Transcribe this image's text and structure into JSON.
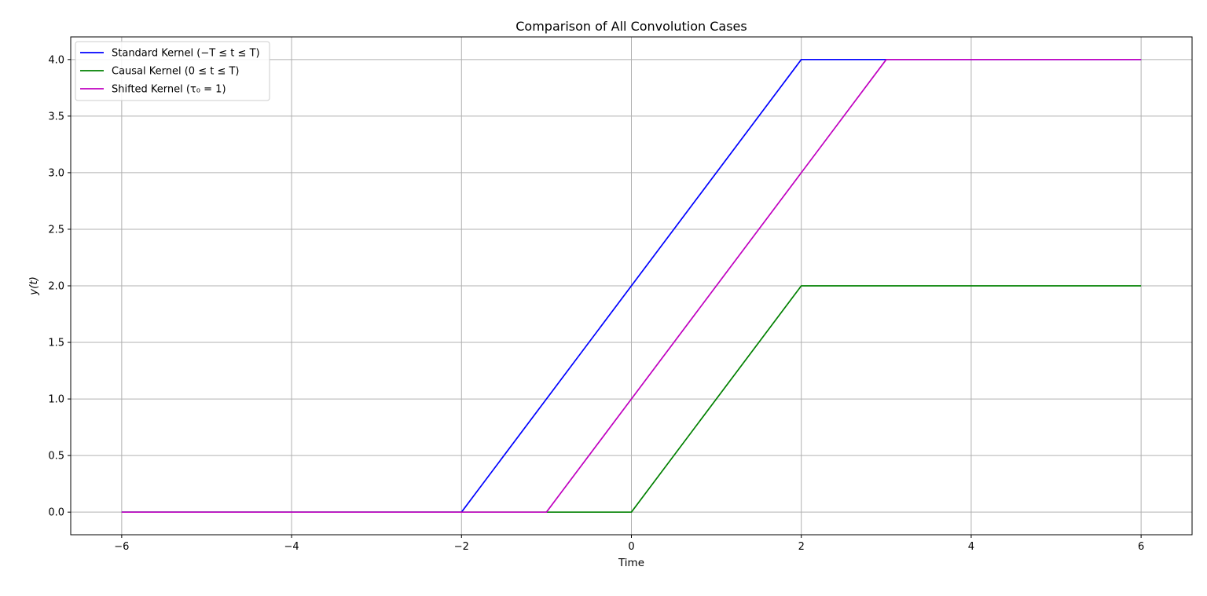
{
  "chart_data": {
    "type": "line",
    "title": "Comparison of All Convolution Cases",
    "xlabel": "Time",
    "ylabel": "y(t)",
    "xlim": [
      -6.6,
      6.6
    ],
    "ylim": [
      -0.2,
      4.2
    ],
    "xticks": [
      -6,
      -4,
      -2,
      0,
      2,
      4,
      6
    ],
    "xtick_labels": [
      "−6",
      "−4",
      "−2",
      "0",
      "2",
      "4",
      "6"
    ],
    "yticks": [
      0.0,
      0.5,
      1.0,
      1.5,
      2.0,
      2.5,
      3.0,
      3.5,
      4.0
    ],
    "ytick_labels": [
      "0.0",
      "0.5",
      "1.0",
      "1.5",
      "2.0",
      "2.5",
      "3.0",
      "3.5",
      "4.0"
    ],
    "grid": true,
    "legend_position": "top-left",
    "series": [
      {
        "name": "Standard Kernel (−T ≤ t ≤ T)",
        "color": "#0000ff",
        "x": [
          -6,
          -2,
          2,
          6
        ],
        "y": [
          0,
          0,
          4,
          4
        ]
      },
      {
        "name": "Causal Kernel (0 ≤ t ≤ T)",
        "color": "#008000",
        "x": [
          -6,
          0,
          2,
          6
        ],
        "y": [
          0,
          0,
          2,
          2
        ]
      },
      {
        "name": "Shifted Kernel (τ₀ = 1)",
        "color": "#c000c0",
        "x": [
          -6,
          -1,
          3,
          6
        ],
        "y": [
          0,
          0,
          4,
          4
        ]
      }
    ]
  }
}
